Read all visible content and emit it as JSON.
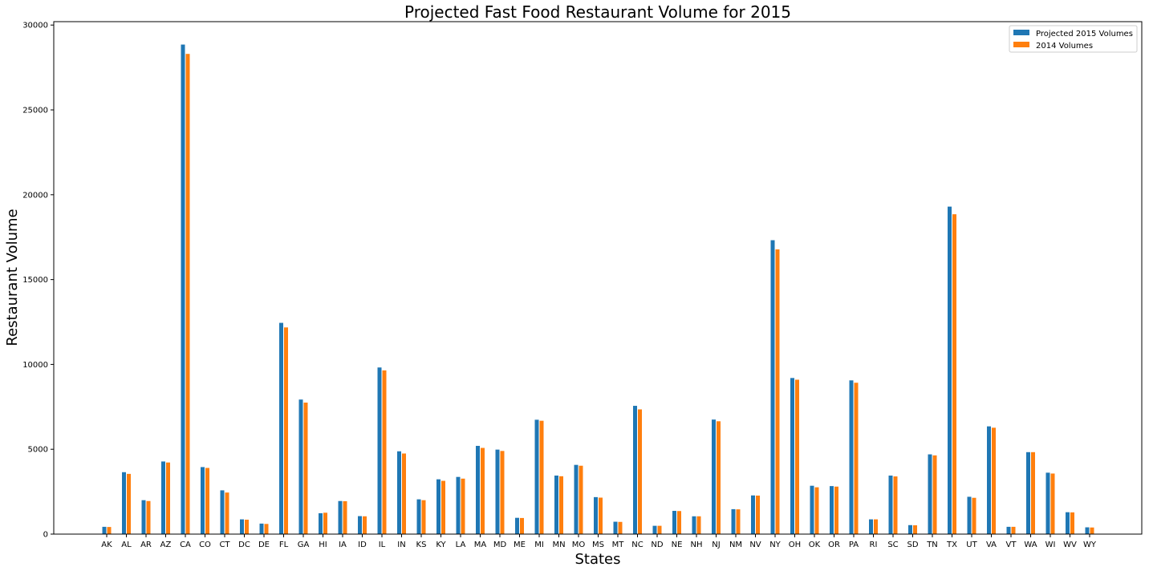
{
  "chart_data": {
    "type": "bar",
    "title": "Projected Fast Food Restaurant Volume for 2015",
    "xlabel": "States",
    "ylabel": "Restaurant Volume",
    "ylim": [
      0,
      30200
    ],
    "yticks": [
      0,
      5000,
      10000,
      15000,
      20000,
      25000,
      30000
    ],
    "grid": false,
    "legend_position": "top-right",
    "categories": [
      "AK",
      "AL",
      "AR",
      "AZ",
      "CA",
      "CO",
      "CT",
      "DC",
      "DE",
      "FL",
      "GA",
      "HI",
      "IA",
      "ID",
      "IL",
      "IN",
      "KS",
      "KY",
      "LA",
      "MA",
      "MD",
      "ME",
      "MI",
      "MN",
      "MO",
      "MS",
      "MT",
      "NC",
      "ND",
      "NE",
      "NH",
      "NJ",
      "NM",
      "NV",
      "NY",
      "OH",
      "OK",
      "OR",
      "PA",
      "RI",
      "SC",
      "SD",
      "TN",
      "TX",
      "UT",
      "VA",
      "VT",
      "WA",
      "WI",
      "WV",
      "WY"
    ],
    "series": [
      {
        "name": "Projected 2015 Volumes",
        "color": "#1f77b4",
        "values": [
          430,
          3650,
          2000,
          4280,
          28850,
          3950,
          2580,
          870,
          620,
          12450,
          7930,
          1230,
          1950,
          1060,
          9820,
          4880,
          2050,
          3230,
          3370,
          5200,
          4980,
          960,
          6740,
          3450,
          4080,
          2180,
          730,
          7560,
          490,
          1370,
          1050,
          6750,
          1470,
          2280,
          17320,
          9200,
          2850,
          2830,
          9060,
          870,
          3450,
          530,
          4700,
          19300,
          2200,
          6350,
          430,
          4830,
          3620,
          1290,
          400
        ]
      },
      {
        "name": "2014 Volumes",
        "color": "#ff7f0e",
        "values": [
          420,
          3550,
          1950,
          4220,
          28300,
          3900,
          2450,
          850,
          600,
          12180,
          7750,
          1260,
          1940,
          1050,
          9650,
          4750,
          2000,
          3140,
          3270,
          5080,
          4900,
          950,
          6680,
          3410,
          4030,
          2150,
          720,
          7350,
          490,
          1360,
          1050,
          6650,
          1460,
          2270,
          16780,
          9100,
          2760,
          2800,
          8920,
          870,
          3400,
          520,
          4640,
          18850,
          2140,
          6270,
          430,
          4830,
          3570,
          1280,
          390
        ]
      }
    ]
  }
}
